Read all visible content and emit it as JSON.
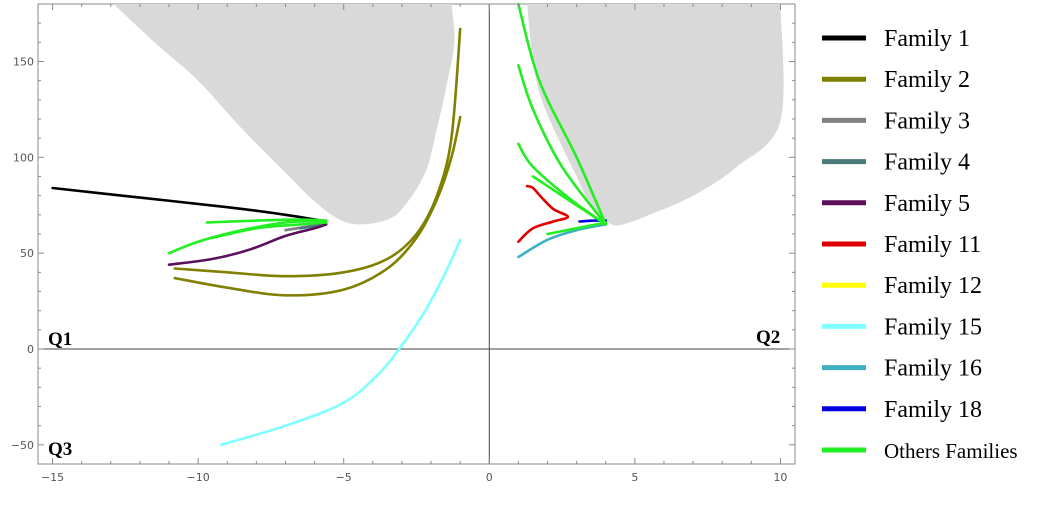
{
  "chart_data": {
    "type": "line",
    "xlim": [
      -15.5,
      10.5
    ],
    "ylim": [
      -60,
      180
    ],
    "x_ticks": [
      -15,
      -10,
      -5,
      0,
      5,
      10
    ],
    "y_ticks": [
      -50,
      0,
      50,
      100,
      150
    ],
    "x_tick_labels": [
      "−15",
      "−10",
      "−5",
      "0",
      "5",
      "10"
    ],
    "y_tick_labels": [
      "−50",
      "0",
      "50",
      "100",
      "150"
    ],
    "grid": false,
    "legend_position": "right",
    "quadrant_labels": [
      "Q1",
      "Q2",
      "Q3"
    ],
    "forbidden_regions": [
      {
        "color": "#d9d9d9",
        "points": [
          [
            -12.9,
            180
          ],
          [
            -11.5,
            160
          ],
          [
            -10,
            140
          ],
          [
            -8.5,
            115
          ],
          [
            -7,
            92
          ],
          [
            -6,
            77
          ],
          [
            -5.2,
            68
          ],
          [
            -4.5,
            65
          ],
          [
            -3.6,
            67
          ],
          [
            -3,
            73
          ],
          [
            -2.2,
            92
          ],
          [
            -1.8,
            115
          ],
          [
            -1.5,
            135
          ],
          [
            -1.2,
            160
          ],
          [
            -1.3,
            180
          ]
        ]
      },
      {
        "color": "#d9d9d9",
        "points": [
          [
            1.3,
            180
          ],
          [
            1.5,
            150
          ],
          [
            1.8,
            130
          ],
          [
            2.3,
            112
          ],
          [
            3,
            90
          ],
          [
            3.5,
            75
          ],
          [
            4.2,
            65
          ],
          [
            4.8,
            66
          ],
          [
            5.5,
            70
          ],
          [
            7,
            80
          ],
          [
            8.5,
            95
          ],
          [
            10,
            119
          ],
          [
            10,
            180
          ]
        ]
      }
    ],
    "series": [
      {
        "name": "Family 1",
        "color": "#000000",
        "paths": [
          [
            [
              -15,
              84
            ],
            [
              -12,
              79
            ],
            [
              -9,
              74
            ],
            [
              -7,
              70
            ],
            [
              -5.6,
              66.5
            ]
          ]
        ]
      },
      {
        "name": "Family 2",
        "color": "#808000",
        "paths": [
          [
            [
              -10.8,
              42
            ],
            [
              -9,
              40
            ],
            [
              -7,
              38
            ],
            [
              -5,
              40
            ],
            [
              -3.5,
              47
            ],
            [
              -2.5,
              60
            ],
            [
              -1.8,
              80
            ],
            [
              -1.3,
              110
            ],
            [
              -1,
              167
            ]
          ],
          [
            [
              -10.8,
              37
            ],
            [
              -9,
              32
            ],
            [
              -7,
              28
            ],
            [
              -5,
              31
            ],
            [
              -3.5,
              42
            ],
            [
              -2.5,
              58
            ],
            [
              -1.8,
              78
            ],
            [
              -1.3,
              100
            ],
            [
              -1,
              121
            ]
          ]
        ]
      },
      {
        "name": "Family 3",
        "color": "#808080",
        "paths": [
          [
            [
              -7,
              62
            ],
            [
              -6,
              64.5
            ],
            [
              -5.6,
              65.5
            ]
          ]
        ]
      },
      {
        "name": "Family 4",
        "color": "#4a7a7a",
        "paths": [
          [
            [
              -6.5,
              63
            ],
            [
              -5.6,
              65
            ]
          ]
        ]
      },
      {
        "name": "Family 5",
        "color": "#5c105c",
        "paths": [
          [
            [
              -11,
              44
            ],
            [
              -9.5,
              47
            ],
            [
              -8.2,
              52
            ],
            [
              -7,
              59
            ],
            [
              -6,
              63
            ],
            [
              -5.6,
              65
            ]
          ]
        ]
      },
      {
        "name": "Family 11",
        "color": "#e00000",
        "paths": [
          [
            [
              1,
              56
            ],
            [
              1.5,
              63
            ],
            [
              2.2,
              66.5
            ],
            [
              2.7,
              69
            ],
            [
              2.2,
              73
            ],
            [
              1.8,
              79
            ],
            [
              1.5,
              84
            ],
            [
              1.3,
              85
            ]
          ]
        ]
      },
      {
        "name": "Family 12",
        "color": "#ffff00",
        "paths": []
      },
      {
        "name": "Family 15",
        "color": "#7fffff",
        "paths": [
          [
            [
              -9.2,
              -50
            ],
            [
              -7,
              -40
            ],
            [
              -5,
              -28
            ],
            [
              -3.8,
              -13
            ],
            [
              -3,
              2
            ],
            [
              -2.2,
              20
            ],
            [
              -1.5,
              40
            ],
            [
              -1,
              57
            ]
          ]
        ]
      },
      {
        "name": "Family 16",
        "color": "#3fb0c0",
        "paths": [
          [
            [
              1,
              48
            ],
            [
              2,
              57
            ],
            [
              3,
              62
            ],
            [
              4,
              65
            ]
          ]
        ]
      },
      {
        "name": "Family 18",
        "color": "#0000e0",
        "paths": [
          [
            [
              3.1,
              66.5
            ],
            [
              3.6,
              67
            ],
            [
              4,
              67
            ]
          ]
        ]
      },
      {
        "name": "Others Families",
        "color": "#22ee22",
        "paths": [
          [
            [
              -11,
              50
            ],
            [
              -10,
              56
            ],
            [
              -8.5,
              62
            ],
            [
              -7,
              66
            ],
            [
              -5.6,
              67
            ]
          ],
          [
            [
              -9.5,
              58
            ],
            [
              -8,
              63
            ],
            [
              -6.5,
              65
            ],
            [
              -5.6,
              66
            ]
          ],
          [
            [
              -9.7,
              66
            ],
            [
              -8,
              67
            ],
            [
              -6.5,
              67.5
            ],
            [
              -5.6,
              67
            ]
          ],
          [
            [
              1,
              180
            ],
            [
              1.5,
              150
            ],
            [
              2,
              130
            ],
            [
              3,
              100
            ],
            [
              4,
              65
            ]
          ],
          [
            [
              1,
              148
            ],
            [
              1.5,
              125
            ],
            [
              2.5,
              95
            ],
            [
              4,
              65
            ]
          ],
          [
            [
              1,
              107
            ],
            [
              1.5,
              95
            ],
            [
              2.8,
              78
            ],
            [
              4,
              65
            ]
          ],
          [
            [
              1.5,
              90
            ],
            [
              2.5,
              80
            ],
            [
              3.5,
              70
            ],
            [
              4,
              65
            ]
          ],
          [
            [
              2,
              60
            ],
            [
              3,
              63
            ],
            [
              4,
              66
            ]
          ]
        ]
      }
    ]
  }
}
